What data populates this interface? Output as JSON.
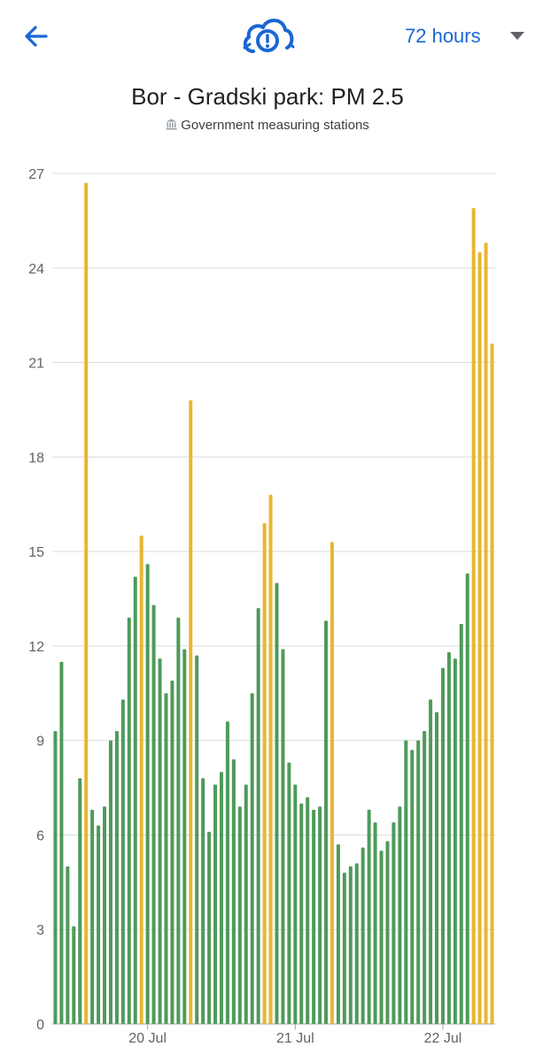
{
  "header": {
    "range_label": "72 hours",
    "icons": {
      "back": "arrow-left-icon",
      "logo": "cloud-alert-icon",
      "dropdown": "caret-down-icon"
    }
  },
  "title": "Bor - Gradski park: PM 2.5",
  "subtitle": "Government measuring stations",
  "subtitle_icon": "government-building-icon",
  "colors": {
    "accent": "#1a67d2",
    "good": "#4e9a5a",
    "moderate": "#e8b730",
    "grid": "#dadce0",
    "axis": "#5f6368"
  },
  "chart_data": {
    "type": "bar",
    "title": "Bor - Gradski park: PM 2.5",
    "xlabel": "",
    "ylabel": "",
    "ylim": [
      0,
      27
    ],
    "yticks": [
      0,
      3,
      6,
      9,
      12,
      15,
      18,
      21,
      24,
      27
    ],
    "xtick_labels": [
      {
        "label": "20 Jul",
        "index": 15
      },
      {
        "label": "21 Jul",
        "index": 39
      },
      {
        "label": "22 Jul",
        "index": 63
      }
    ],
    "grid": true,
    "values": [
      9.3,
      11.5,
      5.0,
      3.1,
      7.8,
      26.7,
      6.8,
      6.3,
      6.9,
      9.0,
      9.3,
      10.3,
      12.9,
      14.2,
      15.5,
      14.6,
      13.3,
      11.6,
      10.5,
      10.9,
      12.9,
      11.9,
      19.8,
      11.7,
      7.8,
      6.1,
      7.6,
      8.0,
      9.6,
      8.4,
      6.9,
      7.6,
      10.5,
      13.2,
      15.9,
      16.8,
      14.0,
      11.9,
      8.3,
      7.6,
      7.0,
      7.2,
      6.8,
      6.9,
      12.8,
      15.3,
      5.7,
      4.8,
      5.0,
      5.1,
      5.6,
      6.8,
      6.4,
      5.5,
      5.8,
      6.4,
      6.9,
      9.0,
      8.7,
      9.0,
      9.3,
      10.3,
      9.9,
      11.3,
      11.8,
      11.6,
      12.7,
      14.3,
      25.9,
      24.5,
      24.8,
      21.6
    ],
    "bar_colors": [
      "g",
      "g",
      "g",
      "g",
      "g",
      "y",
      "g",
      "g",
      "g",
      "g",
      "g",
      "g",
      "g",
      "g",
      "y",
      "g",
      "g",
      "g",
      "g",
      "g",
      "g",
      "g",
      "y",
      "g",
      "g",
      "g",
      "g",
      "g",
      "g",
      "g",
      "g",
      "g",
      "g",
      "g",
      "y",
      "y",
      "g",
      "g",
      "g",
      "g",
      "g",
      "g",
      "g",
      "g",
      "g",
      "y",
      "g",
      "g",
      "g",
      "g",
      "g",
      "g",
      "g",
      "g",
      "g",
      "g",
      "g",
      "g",
      "g",
      "g",
      "g",
      "g",
      "g",
      "g",
      "g",
      "g",
      "g",
      "g",
      "y",
      "y",
      "y",
      "y"
    ]
  }
}
